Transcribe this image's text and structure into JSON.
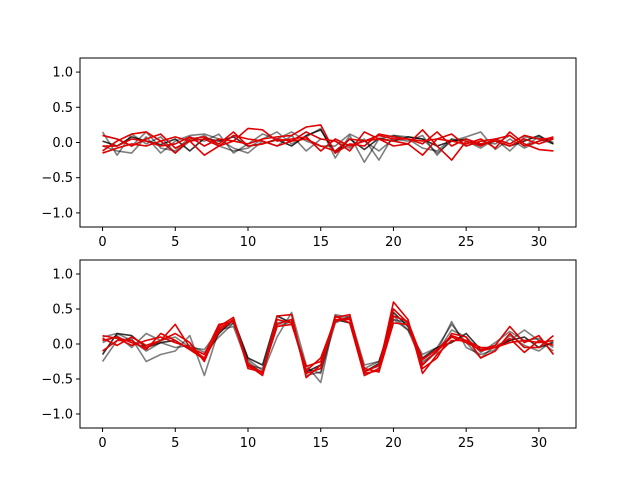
{
  "chart_data": [
    {
      "type": "line",
      "xlim": [
        -1.55,
        32.55
      ],
      "ylim": [
        -1.2,
        1.2
      ],
      "xticks": [
        0,
        5,
        10,
        15,
        20,
        25,
        30
      ],
      "yticks": [
        -1.0,
        -0.5,
        0.0,
        0.5,
        1.0
      ],
      "xtick_labels": [
        "0",
        "5",
        "10",
        "15",
        "20",
        "25",
        "30"
      ],
      "ytick_labels": [
        "−1.0",
        "−0.5",
        "0.0",
        "0.5",
        "1.0"
      ],
      "grid": false,
      "series": [
        {
          "color": "#000000",
          "opacity": 0.8,
          "values": [
            0.02,
            -0.05,
            0.08,
            0.02,
            -0.03,
            0.05,
            -0.12,
            0.06,
            0.02,
            0.08,
            -0.05,
            -0.02,
            0.04,
            -0.05,
            0.1,
            0.18,
            -0.15,
            0.05,
            -0.1,
            0.06,
            0.02,
            0.08,
            0.05,
            -0.05,
            0.02,
            0.05,
            -0.03,
            0.02,
            -0.05,
            0.02,
            0.1,
            -0.02
          ]
        },
        {
          "color": "#000000",
          "opacity": 0.5,
          "values": [
            0.15,
            -0.18,
            0.12,
            -0.02,
            0.08,
            -0.15,
            0.02,
            0.1,
            -0.05,
            -0.12,
            -0.08,
            0.05,
            0.15,
            -0.02,
            0.08,
            0.2,
            -0.22,
            0.1,
            -0.28,
            0.05,
            0.1,
            0.08,
            0.05,
            -0.15,
            0.02,
            0.08,
            0.15,
            -0.1,
            0.05,
            -0.08,
            0.02,
            0.05
          ]
        },
        {
          "color": "#000000",
          "opacity": 0.5,
          "values": [
            -0.05,
            -0.12,
            -0.15,
            0.08,
            -0.15,
            0.02,
            0.1,
            0.12,
            0.05,
            -0.08,
            -0.15,
            0.02,
            -0.05,
            0.1,
            -0.12,
            0.05,
            0.02,
            -0.08,
            0.05,
            -0.25,
            0.1,
            0.05,
            -0.08,
            -0.12,
            0.05,
            -0.05,
            0.02,
            -0.02,
            0.1,
            -0.05,
            0.08,
            0.0
          ]
        },
        {
          "color": "#000000",
          "opacity": 0.5,
          "values": [
            0.1,
            0.05,
            -0.05,
            0.15,
            -0.08,
            -0.12,
            0.08,
            0.02,
            0.12,
            -0.15,
            -0.02,
            0.12,
            0.05,
            0.15,
            0.02,
            -0.05,
            -0.05,
            0.12,
            0.02,
            -0.12,
            0.05,
            0.02,
            0.1,
            -0.18,
            0.05,
            0.02,
            -0.08,
            0.05,
            -0.12,
            0.08,
            0.05,
            -0.02
          ]
        },
        {
          "color": "#e00000",
          "opacity": 1,
          "values": [
            0.1,
            0.05,
            -0.05,
            0.05,
            0.12,
            -0.08,
            0.02,
            0.05,
            -0.05,
            0.02,
            0.2,
            0.18,
            0.02,
            0.05,
            0.08,
            -0.12,
            0.05,
            -0.05,
            0.02,
            0.1,
            0.05,
            0.05,
            0.02,
            0.05,
            0.12,
            -0.05,
            0.02,
            0.05,
            0.1,
            -0.05,
            0.02,
            0.08
          ]
        },
        {
          "color": "#e00000",
          "opacity": 1,
          "values": [
            -0.12,
            0.02,
            0.12,
            0.15,
            0.02,
            -0.15,
            0.05,
            0.08,
            -0.02,
            0.15,
            -0.05,
            -0.02,
            0.05,
            0.02,
            0.15,
            0.05,
            0.02,
            -0.12,
            0.15,
            0.05,
            0.02,
            -0.02,
            0.18,
            -0.05,
            -0.25,
            0.02,
            -0.05,
            0.05,
            -0.02,
            0.1,
            0.05,
            0.06
          ]
        },
        {
          "color": "#e00000",
          "opacity": 1,
          "values": [
            -0.05,
            -0.05,
            0.05,
            0.02,
            -0.05,
            -0.02,
            0.08,
            -0.05,
            0.05,
            0.02,
            -0.02,
            0.05,
            0.08,
            0.1,
            0.22,
            0.25,
            -0.15,
            -0.02,
            -0.05,
            0.12,
            0.08,
            0.05,
            -0.02,
            0.15,
            -0.05,
            0.05,
            -0.02,
            0.02,
            -0.05,
            0.05,
            -0.02,
            0.05
          ]
        },
        {
          "color": "#e00000",
          "opacity": 1,
          "values": [
            -0.15,
            -0.08,
            -0.02,
            -0.05,
            0.02,
            0.08,
            0.02,
            -0.18,
            -0.05,
            0.1,
            0.05,
            0.02,
            -0.05,
            0.02,
            0.05,
            -0.05,
            -0.12,
            0.05,
            0.02,
            0.05,
            -0.05,
            -0.02,
            -0.18,
            0.05,
            0.02,
            -0.02,
            0.05,
            -0.08,
            0.15,
            -0.02,
            -0.1,
            -0.12
          ]
        }
      ]
    },
    {
      "type": "line",
      "xlim": [
        -1.55,
        32.55
      ],
      "ylim": [
        -1.2,
        1.2
      ],
      "xticks": [
        0,
        5,
        10,
        15,
        20,
        25,
        30
      ],
      "yticks": [
        -1.0,
        -0.5,
        0.0,
        0.5,
        1.0
      ],
      "xtick_labels": [
        "0",
        "5",
        "10",
        "15",
        "20",
        "25",
        "30"
      ],
      "ytick_labels": [
        "−1.0",
        "−0.5",
        "0.0",
        "0.5",
        "1.0"
      ],
      "grid": false,
      "series": [
        {
          "color": "#000000",
          "opacity": 0.8,
          "values": [
            -0.15,
            0.15,
            0.12,
            -0.05,
            0.02,
            0.05,
            -0.08,
            -0.2,
            0.15,
            0.35,
            -0.2,
            -0.3,
            0.4,
            0.3,
            -0.4,
            -0.3,
            0.35,
            0.3,
            -0.4,
            -0.28,
            0.45,
            0.25,
            -0.2,
            -0.05,
            0.02,
            0.15,
            -0.08,
            -0.05,
            0.05,
            0.1,
            -0.05,
            0.02
          ]
        },
        {
          "color": "#000000",
          "opacity": 0.5,
          "values": [
            -0.25,
            0.05,
            0.08,
            -0.25,
            -0.15,
            -0.1,
            0.12,
            -0.45,
            0.2,
            0.3,
            -0.25,
            -0.42,
            0.1,
            0.45,
            -0.3,
            -0.55,
            0.4,
            0.35,
            -0.35,
            -0.25,
            0.4,
            0.2,
            -0.28,
            -0.1,
            0.32,
            -0.05,
            -0.15,
            -0.08,
            0.12,
            -0.02,
            -0.1,
            0.05
          ]
        },
        {
          "color": "#000000",
          "opacity": 0.5,
          "values": [
            0.02,
            0.12,
            -0.05,
            0.15,
            0.05,
            0.1,
            -0.05,
            -0.08,
            0.2,
            0.25,
            -0.3,
            -0.35,
            0.3,
            0.35,
            -0.45,
            -0.4,
            0.3,
            0.4,
            -0.3,
            -0.25,
            0.35,
            0.2,
            -0.15,
            -0.05,
            0.28,
            0.02,
            -0.2,
            -0.02,
            0.05,
            0.2,
            0.05,
            -0.1
          ]
        },
        {
          "color": "#000000",
          "opacity": 0.5,
          "values": [
            0.1,
            0.15,
            0.05,
            -0.1,
            0.02,
            -0.05,
            -0.02,
            -0.12,
            0.1,
            0.3,
            -0.22,
            -0.38,
            0.25,
            0.32,
            -0.35,
            -0.42,
            0.42,
            0.38,
            -0.38,
            -0.32,
            0.35,
            0.3,
            -0.25,
            -0.12,
            0.2,
            0.1,
            -0.12,
            0.02,
            0.18,
            0.05,
            0.08,
            -0.05
          ]
        },
        {
          "color": "#e00000",
          "opacity": 1,
          "values": [
            0.05,
            0.1,
            0.02,
            -0.05,
            0.05,
            0.15,
            0.02,
            -0.25,
            0.25,
            0.38,
            -0.32,
            -0.4,
            0.28,
            0.35,
            -0.42,
            -0.35,
            0.4,
            0.3,
            -0.45,
            -0.35,
            0.6,
            0.35,
            -0.42,
            -0.15,
            0.05,
            0.05,
            -0.1,
            -0.05,
            0.02,
            0.05,
            0.02,
            0.05
          ]
        },
        {
          "color": "#e00000",
          "opacity": 1,
          "values": [
            0.12,
            0.08,
            -0.02,
            0.05,
            0.1,
            0.02,
            -0.05,
            -0.2,
            0.22,
            0.35,
            -0.3,
            -0.45,
            0.35,
            0.3,
            -0.38,
            -0.2,
            0.35,
            0.35,
            -0.4,
            -0.3,
            0.5,
            0.3,
            -0.3,
            -0.1,
            0.1,
            0.02,
            -0.08,
            -0.02,
            0.25,
            0.02,
            0.12,
            -0.15
          ]
        },
        {
          "color": "#e00000",
          "opacity": 1,
          "values": [
            0.08,
            -0.02,
            0.1,
            -0.02,
            0.05,
            0.28,
            -0.05,
            -0.15,
            0.28,
            0.32,
            -0.28,
            -0.42,
            0.4,
            0.42,
            -0.48,
            -0.3,
            0.32,
            0.38,
            -0.35,
            -0.4,
            0.3,
            0.28,
            -0.35,
            -0.2,
            0.15,
            0.1,
            -0.2,
            -0.1,
            0.15,
            -0.05,
            -0.05,
            0.12
          ]
        },
        {
          "color": "#e00000",
          "opacity": 1,
          "values": [
            -0.1,
            0.05,
            0.05,
            -0.08,
            0.15,
            0.05,
            -0.08,
            -0.22,
            0.18,
            0.35,
            -0.35,
            -0.4,
            0.25,
            0.28,
            -0.32,
            -0.25,
            0.38,
            0.42,
            -0.42,
            -0.38,
            0.4,
            0.32,
            -0.22,
            -0.08,
            0.12,
            0.05,
            -0.05,
            -0.05,
            0.08,
            -0.12,
            0.05,
            -0.02
          ]
        }
      ]
    }
  ]
}
